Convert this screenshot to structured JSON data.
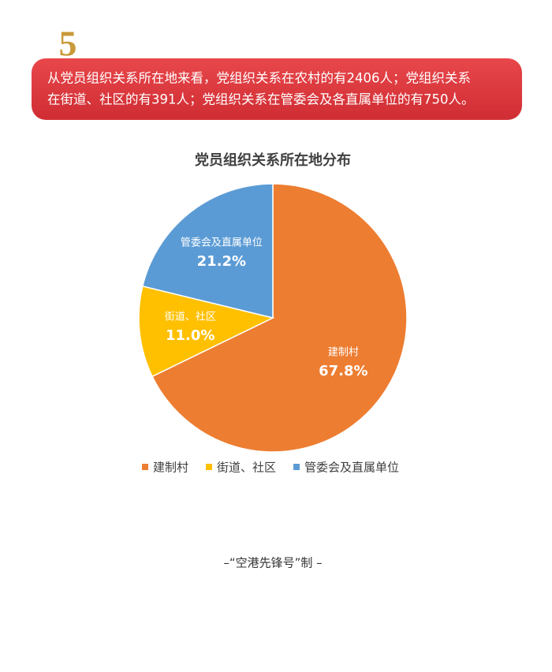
{
  "section_number": "5",
  "banner_lines": [
    "从党员组织关系所在地来看，党组织关系在农村的有2406人；党组织关系",
    "在街道、社区的有391人；党组织关系在管委会及各直属单位的有750人。"
  ],
  "chart_data": {
    "type": "pie",
    "title": "党员组织关系所在地分布",
    "categories": [
      "建制村",
      "街道、社区",
      "管委会及直属单位"
    ],
    "values": [
      67.8,
      11.0,
      21.2
    ],
    "value_labels": [
      "67.8%",
      "11.0%",
      "21.2%"
    ],
    "colors": [
      "#ED7D31",
      "#FFC000",
      "#5B9BD5"
    ],
    "legend": "bottom"
  },
  "footer": "–“空港先锋号”制 –"
}
